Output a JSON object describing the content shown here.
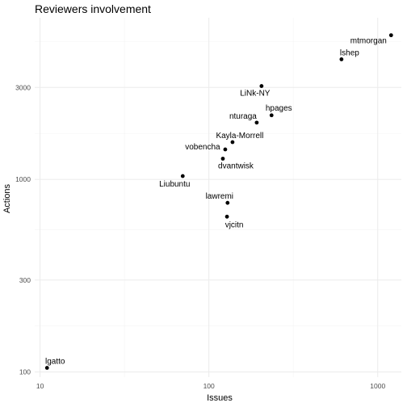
{
  "chart_data": {
    "type": "scatter",
    "title": "Reviewers involvement",
    "xlabel": "Issues",
    "ylabel": "Actions",
    "x_scale": "log",
    "y_scale": "log",
    "xlim": [
      9.3,
      1380
    ],
    "ylim": [
      94,
      6900
    ],
    "x_ticks": [
      {
        "value": 10,
        "label": "10"
      },
      {
        "value": 100,
        "label": "100"
      },
      {
        "value": 1000,
        "label": "1000"
      }
    ],
    "y_ticks": [
      {
        "value": 100,
        "label": "100"
      },
      {
        "value": 300,
        "label": "300"
      },
      {
        "value": 1000,
        "label": "1000"
      },
      {
        "value": 3000,
        "label": "3000"
      }
    ],
    "grid": true,
    "points": [
      {
        "label": "mtmorgan",
        "x": 1200,
        "y": 5600
      },
      {
        "label": "lshep",
        "x": 610,
        "y": 4200
      },
      {
        "label": "LiNk-NY",
        "x": 205,
        "y": 3050
      },
      {
        "label": "hpages",
        "x": 235,
        "y": 2150
      },
      {
        "label": "nturaga",
        "x": 192,
        "y": 1970
      },
      {
        "label": "Kayla-Morrell",
        "x": 138,
        "y": 1560
      },
      {
        "label": "vobencha",
        "x": 125,
        "y": 1430
      },
      {
        "label": "dvantwisk",
        "x": 121,
        "y": 1280
      },
      {
        "label": "Liubuntu",
        "x": 70,
        "y": 1040
      },
      {
        "label": "lawremi",
        "x": 129,
        "y": 755
      },
      {
        "label": "vjcitn",
        "x": 128,
        "y": 640
      },
      {
        "label": "lgatto",
        "x": 11,
        "y": 105
      }
    ]
  }
}
